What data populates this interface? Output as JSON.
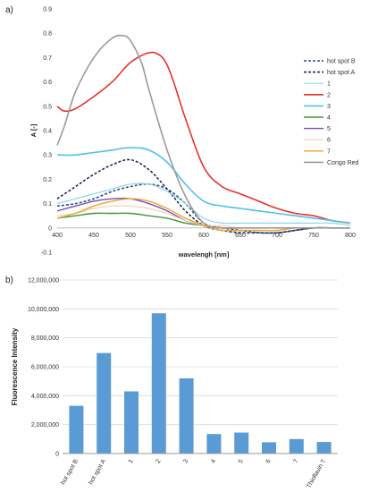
{
  "panels": {
    "a": "a)",
    "b": "b)"
  },
  "chart_data": [
    {
      "type": "line",
      "xlabel": "wavelengh [nm]",
      "ylabel": "A [-]",
      "xlim": [
        400,
        800
      ],
      "ylim": [
        -0.1,
        0.9
      ],
      "xticks": [
        400,
        450,
        500,
        550,
        600,
        650,
        700,
        750,
        800
      ],
      "yticks": [
        -0.1,
        0,
        0.1,
        0.2,
        0.3,
        0.4,
        0.5,
        0.6,
        0.7,
        0.8,
        0.9
      ],
      "ytick_labels": [
        "-0.1",
        "0",
        "0.1",
        "0.2",
        "0.3",
        "0.4",
        "0.5",
        "0.6",
        "0.7",
        "0.8",
        "0.9"
      ],
      "grid": false,
      "legend_position": "right",
      "series": [
        {
          "name": "hot spot B",
          "color": "#2a4a8c",
          "dash": true,
          "width": 1.6,
          "x": [
            400,
            425,
            450,
            475,
            500,
            525,
            550,
            575,
            600,
            625,
            650,
            675,
            700,
            725,
            750,
            775,
            800
          ],
          "y": [
            0.09,
            0.1,
            0.12,
            0.15,
            0.17,
            0.18,
            0.16,
            0.1,
            0.02,
            0.0,
            -0.01,
            -0.02,
            -0.02,
            -0.01,
            0.0,
            0.0,
            0.0
          ]
        },
        {
          "name": "hot spot A",
          "color": "#1f2a52",
          "dash": true,
          "width": 1.6,
          "x": [
            400,
            425,
            450,
            475,
            500,
            525,
            550,
            575,
            600,
            625,
            650,
            675,
            700,
            725,
            750,
            775,
            800
          ],
          "y": [
            0.12,
            0.17,
            0.22,
            0.26,
            0.28,
            0.24,
            0.16,
            0.07,
            0.01,
            -0.01,
            -0.02,
            -0.02,
            -0.02,
            -0.01,
            0.0,
            0.0,
            0.0
          ]
        },
        {
          "name": "1",
          "color": "#8fd6e6",
          "dash": false,
          "width": 1.2,
          "x": [
            400,
            425,
            450,
            475,
            500,
            525,
            550,
            575,
            600,
            625,
            650,
            675,
            700,
            725,
            750,
            775,
            800
          ],
          "y": [
            0.1,
            0.12,
            0.14,
            0.16,
            0.18,
            0.18,
            0.15,
            0.1,
            0.04,
            0.02,
            0.02,
            0.02,
            0.02,
            0.02,
            0.02,
            0.02,
            0.01
          ]
        },
        {
          "name": "2",
          "color": "#e8312a",
          "dash": false,
          "width": 1.6,
          "x": [
            400,
            410,
            425,
            450,
            475,
            500,
            525,
            540,
            550,
            560,
            575,
            600,
            625,
            650,
            675,
            700,
            725,
            750,
            775,
            800
          ],
          "y": [
            0.5,
            0.48,
            0.49,
            0.54,
            0.6,
            0.68,
            0.72,
            0.71,
            0.67,
            0.59,
            0.45,
            0.25,
            0.17,
            0.14,
            0.11,
            0.08,
            0.06,
            0.05,
            0.03,
            0.02
          ]
        },
        {
          "name": "3",
          "color": "#4fc0e8",
          "dash": false,
          "width": 1.6,
          "x": [
            400,
            425,
            450,
            475,
            500,
            525,
            550,
            575,
            600,
            625,
            650,
            675,
            700,
            725,
            750,
            775,
            800
          ],
          "y": [
            0.3,
            0.3,
            0.31,
            0.32,
            0.33,
            0.32,
            0.27,
            0.18,
            0.11,
            0.09,
            0.08,
            0.07,
            0.06,
            0.05,
            0.04,
            0.03,
            0.02
          ]
        },
        {
          "name": "4",
          "color": "#3a9a3a",
          "dash": false,
          "width": 1.4,
          "x": [
            400,
            425,
            450,
            475,
            500,
            525,
            550,
            575,
            600,
            625,
            650,
            675,
            700,
            725,
            750,
            775,
            800
          ],
          "y": [
            0.04,
            0.05,
            0.06,
            0.06,
            0.06,
            0.05,
            0.04,
            0.02,
            0.01,
            0.0,
            0.0,
            0.0,
            0.0,
            0.0,
            0.0,
            0.0,
            0.0
          ]
        },
        {
          "name": "5",
          "color": "#7b4fb3",
          "dash": false,
          "width": 1.4,
          "x": [
            400,
            425,
            450,
            475,
            500,
            525,
            550,
            575,
            600,
            625,
            650,
            675,
            700,
            725,
            750,
            775,
            800
          ],
          "y": [
            0.07,
            0.09,
            0.11,
            0.12,
            0.12,
            0.1,
            0.07,
            0.03,
            0.01,
            0.0,
            0.0,
            0.0,
            0.0,
            0.0,
            0.0,
            0.0,
            0.0
          ]
        },
        {
          "name": "6",
          "color": "#f2d2b4",
          "dash": false,
          "width": 1.2,
          "x": [
            400,
            425,
            450,
            475,
            500,
            525,
            550,
            575,
            600,
            625,
            650,
            675,
            700,
            725,
            750,
            775,
            800
          ],
          "y": [
            0.05,
            0.06,
            0.08,
            0.09,
            0.09,
            0.08,
            0.06,
            0.03,
            0.01,
            0.01,
            0.0,
            0.0,
            0.0,
            0.0,
            0.0,
            0.0,
            0.0
          ]
        },
        {
          "name": "7",
          "color": "#f0a22a",
          "dash": false,
          "width": 1.4,
          "x": [
            400,
            425,
            450,
            475,
            500,
            525,
            550,
            575,
            600,
            625,
            650,
            675,
            700,
            725,
            750,
            775,
            800
          ],
          "y": [
            0.04,
            0.06,
            0.09,
            0.11,
            0.12,
            0.11,
            0.08,
            0.04,
            0.01,
            -0.01,
            -0.01,
            -0.01,
            -0.01,
            0.0,
            0.0,
            0.0,
            0.0
          ]
        },
        {
          "name": "Congo Red",
          "color": "#9a9a9a",
          "dash": false,
          "width": 1.6,
          "x": [
            400,
            410,
            425,
            450,
            475,
            490,
            500,
            515,
            525,
            550,
            575,
            600,
            625,
            650,
            700,
            750,
            800
          ],
          "y": [
            0.34,
            0.42,
            0.56,
            0.7,
            0.78,
            0.79,
            0.77,
            0.68,
            0.57,
            0.32,
            0.13,
            0.02,
            0.0,
            0.0,
            0.0,
            0.0,
            0.0
          ]
        }
      ]
    },
    {
      "type": "bar",
      "xlabel": "",
      "ylabel": "Fluorescence Intensity",
      "ylim": [
        0,
        12000000
      ],
      "yticks": [
        0,
        2000000,
        4000000,
        6000000,
        8000000,
        10000000,
        12000000
      ],
      "ytick_labels": [
        "0",
        "2,000,000",
        "4,000,000",
        "6,000,000",
        "8,000,000",
        "10,000,000",
        "12,000,000"
      ],
      "grid": true,
      "bar_color": "#5b9bd5",
      "categories": [
        "hot spot B",
        "hot spot A",
        "1",
        "2",
        "3",
        "4",
        "5",
        "6",
        "7",
        "Thioflavin T"
      ],
      "values": [
        3300000,
        6950000,
        4300000,
        9700000,
        5200000,
        1350000,
        1450000,
        780000,
        1000000,
        800000
      ]
    }
  ]
}
